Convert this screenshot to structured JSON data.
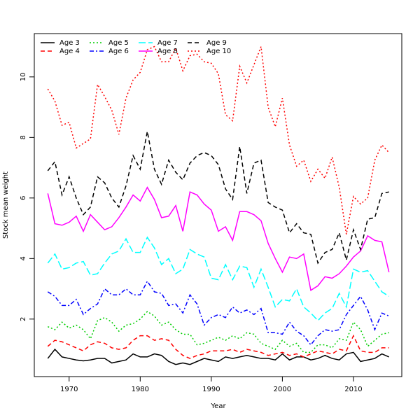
{
  "chart_data": {
    "type": "line",
    "x_label": "Year",
    "y_label": "Stock mean weight",
    "x": [
      1967,
      1968,
      1969,
      1970,
      1971,
      1972,
      1973,
      1974,
      1975,
      1976,
      1977,
      1978,
      1979,
      1980,
      1981,
      1982,
      1983,
      1984,
      1985,
      1986,
      1987,
      1988,
      1989,
      1990,
      1991,
      1992,
      1993,
      1994,
      1995,
      1996,
      1997,
      1998,
      1999,
      2000,
      2001,
      2002,
      2003,
      2004,
      2005,
      2006,
      2007,
      2008,
      2009,
      2010,
      2011,
      2012,
      2013,
      2014,
      2015
    ],
    "xlim": [
      1965.1,
      2016.8
    ],
    "xticks": [
      1970,
      1980,
      1990,
      2000,
      2010
    ],
    "ylim": [
      0.1,
      11.43
    ],
    "yticks": [
      2,
      4,
      6,
      8,
      10
    ],
    "legend": "top-left",
    "series": [
      {
        "name": "Age 3",
        "color": "#000000",
        "linestyle": "solid",
        "values": [
          0.7,
          1.0,
          0.75,
          0.7,
          0.65,
          0.62,
          0.65,
          0.7,
          0.7,
          0.55,
          0.6,
          0.65,
          0.85,
          0.75,
          0.75,
          0.85,
          0.8,
          0.6,
          0.5,
          0.55,
          0.5,
          0.6,
          0.7,
          0.65,
          0.6,
          0.75,
          0.7,
          0.75,
          0.8,
          0.75,
          0.7,
          0.7,
          0.65,
          0.85,
          0.65,
          0.75,
          0.75,
          0.65,
          0.7,
          0.8,
          0.7,
          0.65,
          0.85,
          0.9,
          0.6,
          0.65,
          0.7,
          0.85,
          0.75
        ]
      },
      {
        "name": "Age 4",
        "color": "#ff0000",
        "linestyle": "dashed",
        "values": [
          1.1,
          1.3,
          1.25,
          1.15,
          1.05,
          0.95,
          1.15,
          1.25,
          1.2,
          1.05,
          1.0,
          1.05,
          1.3,
          1.45,
          1.45,
          1.3,
          1.35,
          1.3,
          1.0,
          0.8,
          0.7,
          0.8,
          0.85,
          0.95,
          0.95,
          0.95,
          1.0,
          0.9,
          1.0,
          0.95,
          0.9,
          0.8,
          0.85,
          0.9,
          0.8,
          0.85,
          0.75,
          0.85,
          0.95,
          0.9,
          0.85,
          1.0,
          0.95,
          1.45,
          0.95,
          0.9,
          0.9,
          1.05,
          1.05
        ]
      },
      {
        "name": "Age 5",
        "color": "#00cd00",
        "linestyle": "dotted",
        "values": [
          1.75,
          1.65,
          1.9,
          1.7,
          1.8,
          1.65,
          1.35,
          1.95,
          2.05,
          1.9,
          1.6,
          1.8,
          1.85,
          2.0,
          2.25,
          2.1,
          1.8,
          1.9,
          1.65,
          1.5,
          1.5,
          1.15,
          1.2,
          1.3,
          1.4,
          1.3,
          1.45,
          1.35,
          1.55,
          1.5,
          1.2,
          1.1,
          1.0,
          1.3,
          1.1,
          1.2,
          0.9,
          0.9,
          1.15,
          1.15,
          1.05,
          1.35,
          1.3,
          1.9,
          1.65,
          1.1,
          1.3,
          1.5,
          1.55
        ]
      },
      {
        "name": "Age 6",
        "color": "#0000ff",
        "linestyle": "dashdot",
        "values": [
          2.9,
          2.75,
          2.45,
          2.45,
          2.65,
          2.15,
          2.35,
          2.5,
          3.0,
          2.8,
          2.8,
          3.0,
          2.8,
          2.8,
          3.25,
          2.9,
          2.85,
          2.45,
          2.5,
          2.2,
          2.8,
          2.5,
          1.8,
          2.05,
          2.15,
          2.05,
          2.4,
          2.2,
          2.3,
          2.15,
          2.35,
          1.55,
          1.55,
          1.5,
          1.9,
          1.6,
          1.45,
          1.15,
          1.45,
          1.65,
          1.6,
          1.65,
          2.15,
          2.45,
          2.75,
          2.3,
          1.65,
          2.2,
          2.1
        ]
      },
      {
        "name": "Age 7",
        "color": "#00ffff",
        "linestyle": "longdash",
        "values": [
          3.85,
          4.15,
          3.65,
          3.7,
          3.85,
          3.9,
          3.45,
          3.5,
          3.85,
          4.15,
          4.25,
          4.65,
          4.2,
          4.2,
          4.7,
          4.35,
          3.8,
          4.0,
          3.5,
          3.65,
          4.3,
          4.15,
          4.05,
          3.35,
          3.3,
          3.8,
          3.3,
          3.75,
          3.7,
          3.05,
          3.65,
          3.05,
          2.4,
          2.65,
          2.6,
          3.0,
          2.4,
          2.2,
          1.95,
          2.2,
          2.35,
          2.85,
          2.4,
          3.65,
          3.55,
          3.6,
          3.25,
          2.9,
          2.75
        ]
      },
      {
        "name": "Age 8",
        "color": "#ff00ff",
        "linestyle": "solid",
        "values": [
          6.15,
          5.15,
          5.1,
          5.2,
          5.4,
          4.9,
          5.45,
          5.2,
          4.95,
          5.05,
          5.35,
          5.7,
          6.1,
          5.9,
          6.35,
          5.95,
          5.35,
          5.4,
          5.75,
          4.9,
          6.2,
          6.1,
          5.8,
          5.6,
          4.9,
          5.05,
          4.6,
          5.55,
          5.55,
          5.45,
          5.25,
          4.5,
          4.0,
          3.55,
          4.05,
          4.0,
          4.15,
          2.95,
          3.1,
          3.4,
          3.35,
          3.5,
          3.75,
          4.05,
          4.25,
          4.75,
          4.6,
          4.55,
          3.55
        ]
      },
      {
        "name": "Age 9",
        "color": "#000000",
        "linestyle": "dashed",
        "values": [
          6.9,
          7.2,
          6.1,
          6.7,
          6.0,
          5.45,
          5.7,
          6.7,
          6.5,
          6.0,
          5.7,
          6.4,
          7.4,
          6.95,
          8.2,
          6.95,
          6.45,
          7.25,
          6.85,
          6.6,
          7.15,
          7.4,
          7.5,
          7.4,
          7.1,
          6.3,
          5.95,
          7.7,
          6.15,
          7.15,
          7.25,
          5.85,
          5.7,
          5.6,
          4.85,
          5.15,
          4.85,
          4.8,
          3.85,
          4.2,
          4.3,
          4.85,
          3.95,
          4.95,
          4.3,
          5.3,
          5.35,
          6.15,
          6.2
        ]
      },
      {
        "name": "Age 10",
        "color": "#ff0000",
        "linestyle": "dotted",
        "values": [
          9.6,
          9.2,
          8.4,
          8.5,
          7.65,
          7.8,
          7.95,
          9.75,
          9.35,
          8.9,
          8.1,
          9.3,
          9.9,
          10.15,
          10.9,
          11.0,
          10.5,
          10.5,
          10.95,
          10.2,
          10.7,
          10.75,
          10.5,
          10.45,
          10.1,
          8.75,
          8.55,
          10.35,
          9.8,
          10.4,
          11.0,
          9.0,
          8.35,
          9.3,
          7.75,
          7.05,
          7.25,
          6.55,
          6.95,
          6.65,
          7.35,
          6.35,
          4.8,
          6.05,
          5.8,
          6.0,
          7.25,
          7.75,
          7.5
        ]
      }
    ]
  }
}
